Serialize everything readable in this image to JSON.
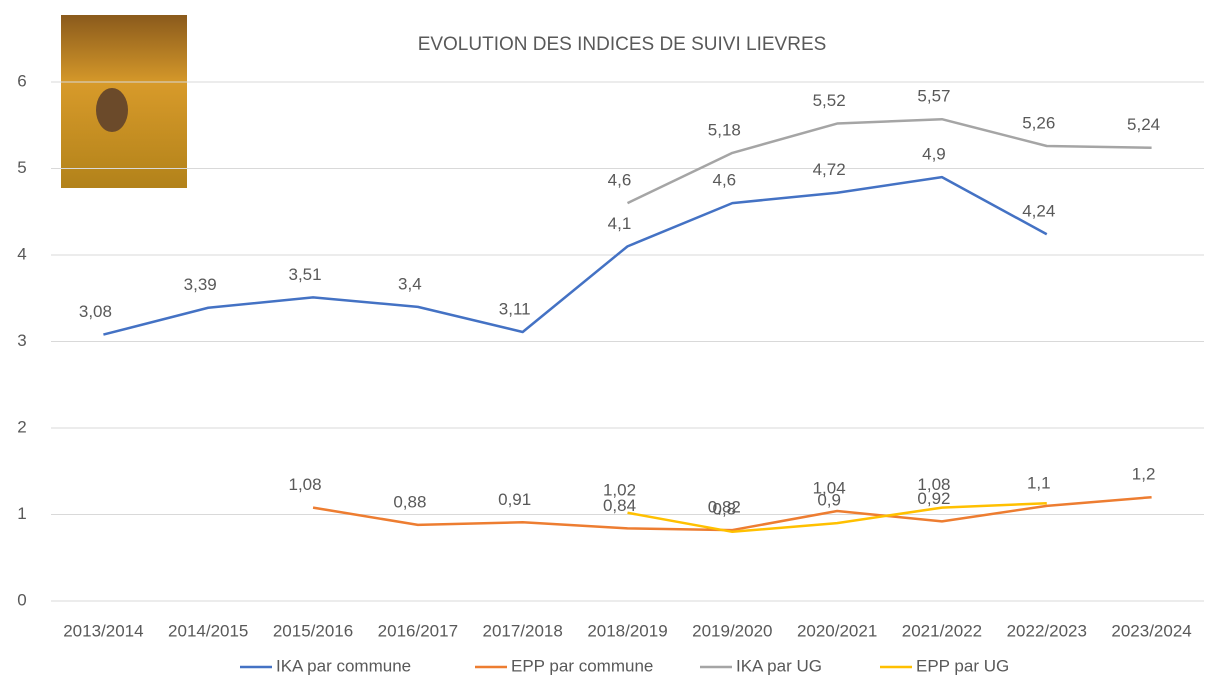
{
  "chart_data": {
    "type": "line",
    "title": "EVOLUTION DES INDICES DE SUIVI LIEVRES",
    "categories": [
      "2013/2014",
      "2014/2015",
      "2015/2016",
      "2016/2017",
      "2017/2018",
      "2018/2019",
      "2019/2020",
      "2020/2021",
      "2021/2022",
      "2022/2023",
      "2023/2024"
    ],
    "series": [
      {
        "name": "IKA par commune",
        "color": "#4472c4",
        "values": [
          3.08,
          3.39,
          3.51,
          3.4,
          3.11,
          4.1,
          4.6,
          4.72,
          4.9,
          4.24,
          null
        ],
        "value_labels": [
          "3,08",
          "3,39",
          "3,51",
          "3,4",
          "3,11",
          "4,1",
          "4,6",
          "4,72",
          "4,9",
          "4,24",
          null
        ]
      },
      {
        "name": "EPP par commune",
        "color": "#ed7d31",
        "values": [
          null,
          null,
          1.08,
          0.88,
          0.91,
          0.84,
          0.82,
          1.04,
          0.92,
          1.1,
          1.2
        ],
        "value_labels": [
          null,
          null,
          "1,08",
          "0,88",
          "0,91",
          "0,84",
          "0,82",
          "1,04",
          "0,92",
          "1,1",
          "1,2"
        ]
      },
      {
        "name": "IKA par UG",
        "color": "#a5a5a5",
        "values": [
          null,
          null,
          null,
          null,
          null,
          4.6,
          5.18,
          5.52,
          5.57,
          5.26,
          5.24
        ],
        "value_labels": [
          null,
          null,
          null,
          null,
          null,
          "4,6",
          "5,18",
          "5,52",
          "5,57",
          "5,26",
          "5,24"
        ]
      },
      {
        "name": "EPP par UG",
        "color": "#ffc000",
        "values": [
          null,
          null,
          null,
          null,
          null,
          1.02,
          0.8,
          0.9,
          1.08,
          1.13,
          null
        ],
        "value_labels": [
          null,
          null,
          null,
          null,
          null,
          "1,02",
          "0,8",
          "0,9",
          "1,08",
          null,
          null
        ]
      }
    ],
    "ylim": [
      0,
      6
    ],
    "yticks": [
      0,
      1,
      2,
      3,
      4,
      5,
      6
    ],
    "grid": true,
    "legend": "bottom"
  }
}
